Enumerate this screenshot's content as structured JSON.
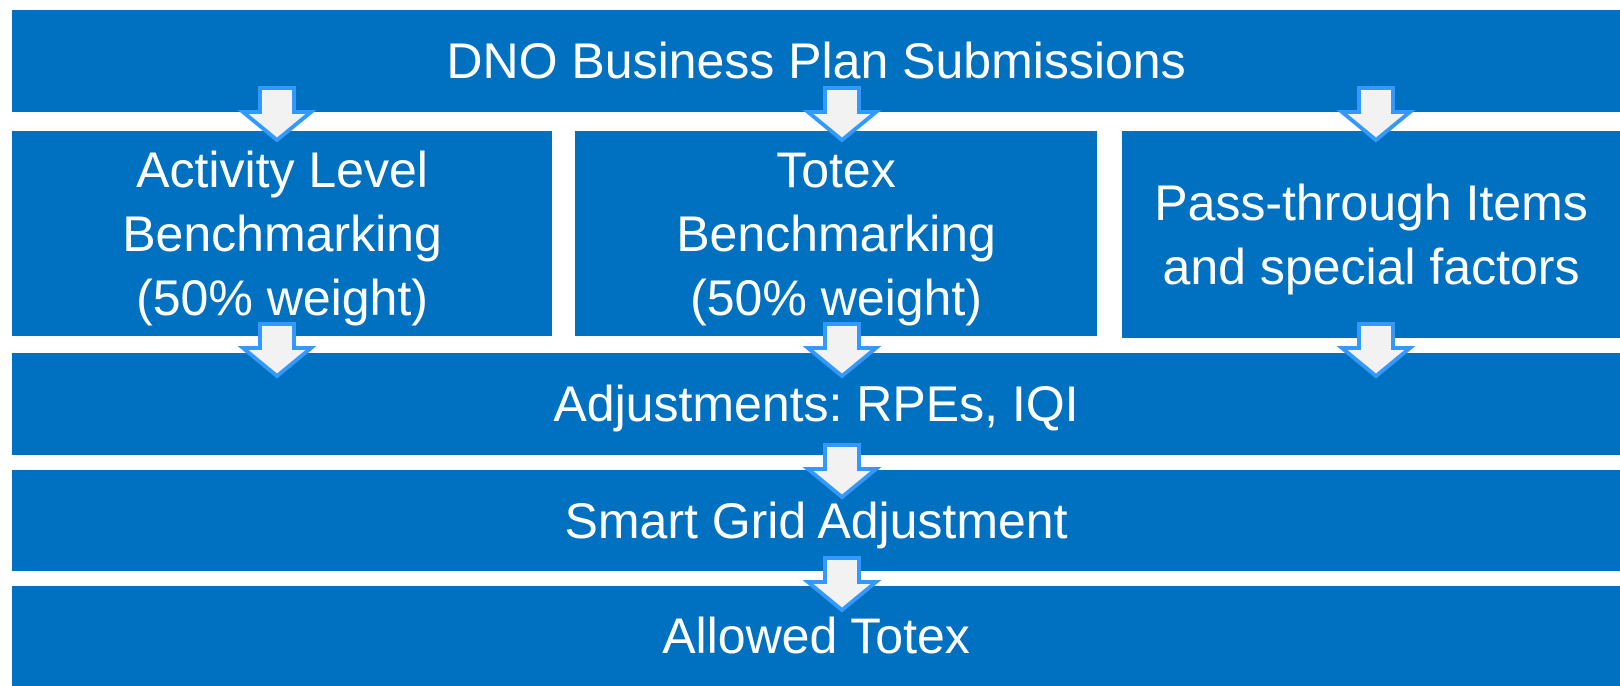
{
  "nodes": [
    {
      "label": [
        "DNO Business Plan Submissions"
      ]
    },
    {
      "label": [
        "Activity Level",
        "Benchmarking",
        "(50% weight)"
      ]
    },
    {
      "label": [
        "Totex",
        "Benchmarking",
        "(50% weight)"
      ]
    },
    {
      "label": [
        "Pass-through Items",
        "and special factors"
      ]
    },
    {
      "label": [
        "Adjustments: RPEs, IQI"
      ]
    },
    {
      "label": [
        "Smart Grid Adjustment"
      ]
    },
    {
      "label": [
        "Allowed Totex"
      ]
    }
  ]
}
